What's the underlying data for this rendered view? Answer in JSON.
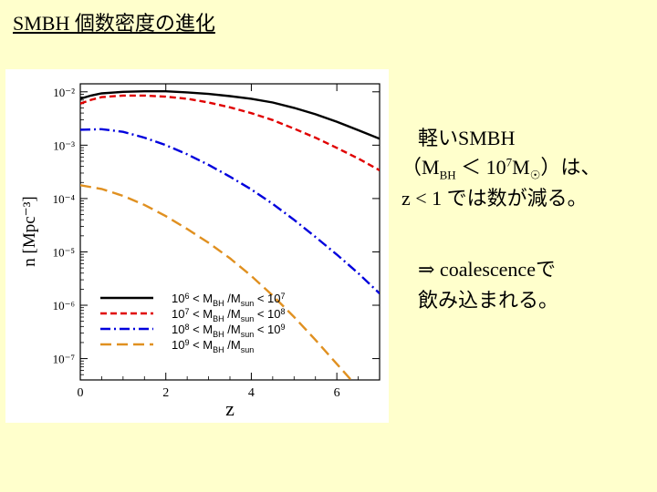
{
  "slide": {
    "title": "SMBH 個数密度の進化"
  },
  "notes": {
    "line1": "軽いSMBH",
    "line2_pre": "（M",
    "line2_sub": "BH",
    "line2_mid": " ＜ 10",
    "line2_sup": "7",
    "line2_m": "M",
    "line2_sun": "☉",
    "line2_post": "）は、",
    "line3": "z < 1 では数が減る。",
    "line4": "⇒ coalescenceで",
    "line5": "飲み込まれる。"
  },
  "colors": {
    "background": "#ffffcc",
    "series_black": "#000000",
    "series_red": "#e00000",
    "series_blue": "#0000dd",
    "series_orange": "#e09020"
  },
  "chart_data": {
    "type": "line",
    "xlabel": "z",
    "ylabel": "n [Mpc⁻³]",
    "xlim": [
      0,
      7
    ],
    "ylim_log10": [
      -7.4,
      -1.85
    ],
    "y_scale": "log",
    "x_ticks": [
      0,
      2,
      4,
      6
    ],
    "y_ticks": [
      {
        "exp": -2,
        "label": "10⁻²"
      },
      {
        "exp": -3,
        "label": "10⁻³"
      },
      {
        "exp": -4,
        "label": "10⁻⁴"
      },
      {
        "exp": -5,
        "label": "10⁻⁵"
      },
      {
        "exp": -6,
        "label": "10⁻⁶"
      },
      {
        "exp": -7,
        "label": "10⁻⁷"
      }
    ],
    "legend_position": "bottom-left",
    "series": [
      {
        "name": "10⁶ < M_BH /M_sun < 10⁷",
        "legend": {
          "a": "10",
          "a_sup": "6",
          "b": " < M",
          "b_sub": "BH",
          "c": " /M",
          "c_sub": "sun",
          "d": " < 10",
          "d_sup": "7"
        },
        "style": "solid",
        "color": "#000000",
        "x": [
          0,
          0.25,
          0.5,
          1,
          1.5,
          2,
          2.5,
          3,
          3.5,
          4,
          4.5,
          5,
          5.5,
          6,
          6.5,
          7
        ],
        "log10_n": [
          -2.13,
          -2.07,
          -2.03,
          -2.0,
          -1.99,
          -1.99,
          -2.01,
          -2.04,
          -2.08,
          -2.13,
          -2.2,
          -2.3,
          -2.42,
          -2.56,
          -2.72,
          -2.88
        ]
      },
      {
        "name": "10⁷ < M_BH /M_sun < 10⁸",
        "legend": {
          "a": "10",
          "a_sup": "7",
          "b": " < M",
          "b_sub": "BH",
          "c": " /M",
          "c_sub": "sun",
          "d": " < 10",
          "d_sup": "8"
        },
        "style": "dashed",
        "color": "#e00000",
        "x": [
          0,
          0.25,
          0.5,
          1,
          1.5,
          2,
          2.5,
          3,
          3.5,
          4,
          4.5,
          5,
          5.5,
          6,
          6.5,
          7
        ],
        "log10_n": [
          -2.22,
          -2.15,
          -2.1,
          -2.07,
          -2.07,
          -2.09,
          -2.13,
          -2.2,
          -2.29,
          -2.4,
          -2.53,
          -2.69,
          -2.86,
          -3.05,
          -3.25,
          -3.47
        ]
      },
      {
        "name": "10⁸ < M_BH /M_sun < 10⁹",
        "legend": {
          "a": "10",
          "a_sup": "8",
          "b": " < M",
          "b_sub": "BH",
          "c": " /M",
          "c_sub": "sun",
          "d": " < 10",
          "d_sup": "9"
        },
        "style": "dashdot",
        "color": "#0000dd",
        "x": [
          0,
          0.5,
          1,
          1.5,
          2,
          2.5,
          3,
          3.5,
          4,
          4.5,
          5,
          5.5,
          6,
          6.5,
          7
        ],
        "log10_n": [
          -2.71,
          -2.7,
          -2.75,
          -2.86,
          -3.0,
          -3.17,
          -3.37,
          -3.59,
          -3.83,
          -4.1,
          -4.4,
          -4.72,
          -5.05,
          -5.4,
          -5.78
        ]
      },
      {
        "name": "10⁹ < M_BH /M_sun",
        "legend": {
          "a": "10",
          "a_sup": "9",
          "b": " < M",
          "b_sub": "BH",
          "c": " /M",
          "c_sub": "sun",
          "d": "",
          "d_sup": ""
        },
        "style": "longdash",
        "color": "#e09020",
        "x": [
          0,
          0.5,
          1,
          1.5,
          2,
          2.5,
          3,
          3.5,
          4,
          4.5,
          5,
          5.5,
          6,
          6.5
        ],
        "log10_n": [
          -3.75,
          -3.82,
          -3.95,
          -4.12,
          -4.33,
          -4.57,
          -4.83,
          -5.12,
          -5.45,
          -5.82,
          -6.22,
          -6.65,
          -7.1,
          -7.55
        ]
      }
    ]
  }
}
